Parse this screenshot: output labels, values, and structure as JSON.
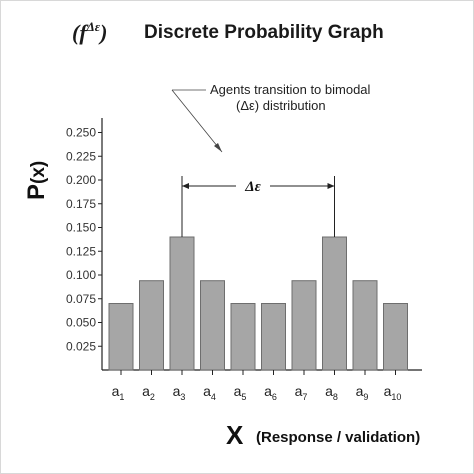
{
  "title": {
    "symbol_open": "(",
    "symbol_f": "f",
    "symbol_sup": "Δε",
    "symbol_close": ")",
    "text": "Discrete Probability Graph"
  },
  "annotation": {
    "line1": "Agents transition to bimodal",
    "line2": "(Δε) distribution"
  },
  "delta_label": "Δε",
  "axes": {
    "y_label_main": "P",
    "y_label_rest": "(x)",
    "x_label_main": "X",
    "x_label_rest": "(Response / validation)"
  },
  "colors": {
    "bar_fill": "#a6a6a6",
    "bar_stroke": "#6e6e6e",
    "axis": "#222222"
  },
  "chart_data": {
    "type": "bar",
    "categories": [
      {
        "base": "a",
        "sub": "1"
      },
      {
        "base": "a",
        "sub": "2"
      },
      {
        "base": "a",
        "sub": "3"
      },
      {
        "base": "a",
        "sub": "4"
      },
      {
        "base": "a",
        "sub": "5"
      },
      {
        "base": "a",
        "sub": "6"
      },
      {
        "base": "a",
        "sub": "7"
      },
      {
        "base": "a",
        "sub": "8"
      },
      {
        "base": "a",
        "sub": "9"
      },
      {
        "base": "a",
        "sub": "10"
      }
    ],
    "values": [
      0.07,
      0.094,
      0.14,
      0.094,
      0.07,
      0.07,
      0.094,
      0.14,
      0.094,
      0.07
    ],
    "yticks": [
      "0.025",
      "0.050",
      "0.075",
      "0.100",
      "0.125",
      "0.150",
      "0.175",
      "0.200",
      "0.225",
      "0.250"
    ],
    "ylim": [
      0,
      0.27
    ],
    "grid": false,
    "delta_between": [
      2,
      7
    ]
  }
}
